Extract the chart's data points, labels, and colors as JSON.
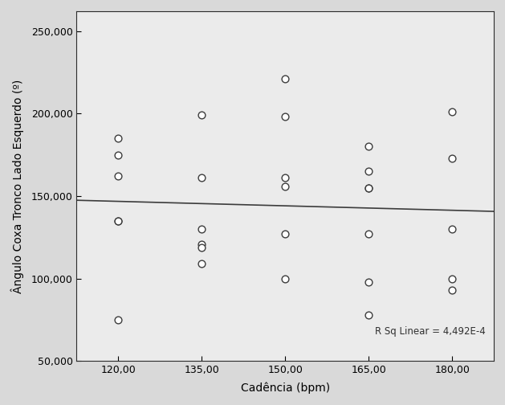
{
  "scatter_points": [
    [
      120,
      185000
    ],
    [
      120,
      175000
    ],
    [
      120,
      162000
    ],
    [
      120,
      135000
    ],
    [
      120,
      135000
    ],
    [
      120,
      75000
    ],
    [
      135,
      199000
    ],
    [
      135,
      161000
    ],
    [
      135,
      130000
    ],
    [
      135,
      121000
    ],
    [
      135,
      119000
    ],
    [
      135,
      109000
    ],
    [
      150,
      221000
    ],
    [
      150,
      198000
    ],
    [
      150,
      161000
    ],
    [
      150,
      156000
    ],
    [
      150,
      127000
    ],
    [
      150,
      100000
    ],
    [
      165,
      180000
    ],
    [
      165,
      165000
    ],
    [
      165,
      155000
    ],
    [
      165,
      155000
    ],
    [
      165,
      127000
    ],
    [
      165,
      98000
    ],
    [
      165,
      78000
    ],
    [
      180,
      201000
    ],
    [
      180,
      173000
    ],
    [
      180,
      130000
    ],
    [
      180,
      100000
    ],
    [
      180,
      93000
    ]
  ],
  "xlabel": "Cadência (bpm)",
  "ylabel": "Ângulo Coxa Tronco Lado Esquerdo (º)",
  "xlim": [
    112.5,
    187.5
  ],
  "ylim": [
    50000,
    262000
  ],
  "xticks": [
    120,
    135,
    150,
    165,
    180
  ],
  "yticks": [
    50000,
    100000,
    150000,
    200000,
    250000
  ],
  "ytick_labels": [
    "50,000",
    "100,000",
    "150,000",
    "200,000",
    "250,000"
  ],
  "xtick_labels": [
    "120,00",
    "135,00",
    "150,00",
    "165,00",
    "180,00"
  ],
  "annotation": "R Sq Linear = 4,492E-4",
  "outer_bg_color": "#d9d9d9",
  "plot_bg_color": "#ebebeb",
  "line_color": "#3c3c3c",
  "marker_facecolor": "white",
  "marker_edgecolor": "#3c3c3c",
  "marker_size": 40,
  "marker_linewidth": 1.0,
  "spine_color": "#2c2c2c",
  "tick_label_fontsize": 9,
  "axis_label_fontsize": 10,
  "annotation_fontsize": 8.5
}
